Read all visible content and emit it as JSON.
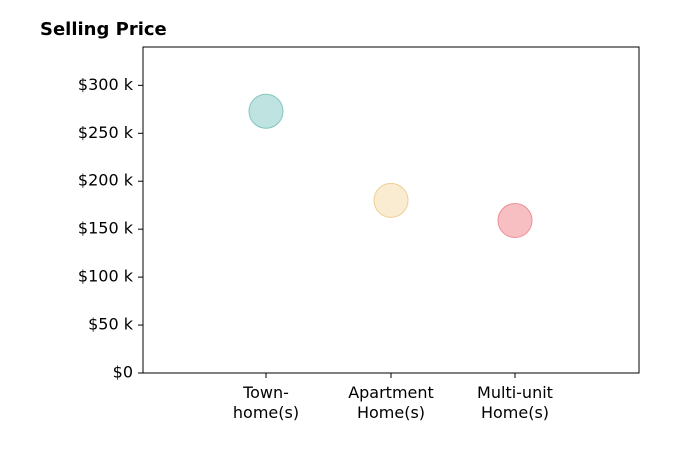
{
  "chart_data": {
    "type": "scatter",
    "title": "Selling Price",
    "xlabel": "",
    "ylabel": "",
    "categories": [
      "Town-\nhome(s)",
      "Apartment\nHome(s)",
      "Multi-unit\nHome(s)"
    ],
    "values": [
      273000,
      180000,
      159000
    ],
    "colors": [
      "#a8dad5",
      "#f7e5c1",
      "#f6a9ae"
    ],
    "point_border_colors": [
      "#84c6bf",
      "#efcf95",
      "#ec8f95"
    ],
    "ylim": [
      0,
      340000
    ],
    "yticks": [
      0,
      50000,
      100000,
      150000,
      200000,
      250000,
      300000
    ],
    "ytick_labels": [
      "$0",
      "$50 k",
      "$100 k",
      "$150 k",
      "$200 k",
      "$250 k",
      "$300 k"
    ],
    "grid": false,
    "legend": "none"
  }
}
